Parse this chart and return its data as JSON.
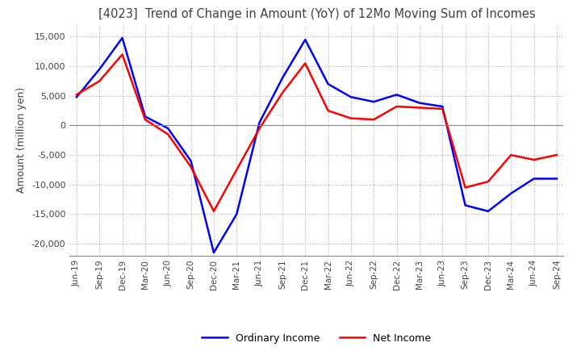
{
  "title": "[4023]  Trend of Change in Amount (YoY) of 12Mo Moving Sum of Incomes",
  "ylabel": "Amount (million yen)",
  "ylim": [
    -22000,
    17000
  ],
  "yticks": [
    -20000,
    -15000,
    -10000,
    -5000,
    0,
    5000,
    10000,
    15000
  ],
  "x_labels": [
    "Jun-19",
    "Sep-19",
    "Dec-19",
    "Mar-20",
    "Jun-20",
    "Sep-20",
    "Dec-20",
    "Mar-21",
    "Jun-21",
    "Sep-21",
    "Dec-21",
    "Mar-22",
    "Jun-22",
    "Sep-22",
    "Dec-22",
    "Mar-23",
    "Jun-23",
    "Sep-23",
    "Dec-23",
    "Mar-24",
    "Jun-24",
    "Sep-24"
  ],
  "ordinary_income": [
    4800,
    9500,
    14800,
    1500,
    -500,
    -6000,
    -21500,
    -15000,
    500,
    8000,
    14500,
    7000,
    4800,
    4000,
    5200,
    3800,
    3200,
    -13500,
    -14500,
    -11500,
    -9000,
    -9000
  ],
  "net_income": [
    5200,
    7500,
    12000,
    1000,
    -1500,
    -7000,
    -14500,
    -7500,
    -500,
    5500,
    10500,
    2500,
    1200,
    1000,
    3200,
    3000,
    2800,
    -10500,
    -9500,
    -5000,
    -5800,
    -5000
  ],
  "ordinary_color": "#0000ff",
  "net_color": "#ff0000",
  "background_color": "#ffffff",
  "grid_color": "#aaaaaa",
  "title_color": "#404040"
}
